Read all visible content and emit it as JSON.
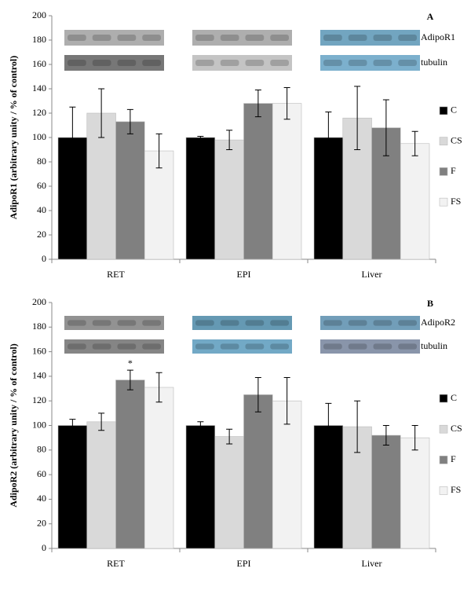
{
  "chart_data": [
    {
      "type": "bar",
      "panel_label": "A",
      "y_label": "AdipoR1 (arbitrary unity / % of control)",
      "blot_labels": [
        "AdipoR1",
        "tubulin"
      ],
      "categories": [
        "RET",
        "EPI",
        "Liver"
      ],
      "series": [
        {
          "name": "C",
          "color": "#000000",
          "values": [
            100,
            100,
            100
          ],
          "errors": [
            25,
            1,
            21
          ]
        },
        {
          "name": "CS",
          "color": "#d9d9d9",
          "values": [
            120,
            98,
            116
          ],
          "errors": [
            20,
            8,
            26
          ]
        },
        {
          "name": "F",
          "color": "#808080",
          "values": [
            113,
            128,
            108
          ],
          "errors": [
            10,
            11,
            23
          ]
        },
        {
          "name": "FS",
          "color": "#f2f2f2",
          "values": [
            89,
            128,
            95
          ],
          "errors": [
            14,
            13,
            10
          ]
        }
      ],
      "ylim": [
        0,
        200
      ],
      "yticks": [
        0,
        20,
        40,
        60,
        80,
        100,
        120,
        140,
        160,
        180,
        200
      ]
    },
    {
      "type": "bar",
      "panel_label": "B",
      "y_label": "AdipoR2 (arbitrary unity / % of control)",
      "blot_labels": [
        "AdipoR2",
        "tubulin"
      ],
      "categories": [
        "RET",
        "EPI",
        "Liver"
      ],
      "series": [
        {
          "name": "C",
          "color": "#000000",
          "values": [
            100,
            100,
            100
          ],
          "errors": [
            5,
            3,
            18
          ]
        },
        {
          "name": "CS",
          "color": "#d9d9d9",
          "values": [
            103,
            91,
            99
          ],
          "errors": [
            7,
            6,
            21
          ]
        },
        {
          "name": "F",
          "color": "#808080",
          "values": [
            137,
            125,
            92
          ],
          "errors": [
            8,
            14,
            8
          ]
        },
        {
          "name": "FS",
          "color": "#f2f2f2",
          "values": [
            131,
            120,
            90
          ],
          "errors": [
            12,
            19,
            10
          ]
        }
      ],
      "annotations": [
        {
          "text": "*",
          "category": 0,
          "series": 2
        }
      ],
      "ylim": [
        0,
        200
      ],
      "yticks": [
        0,
        20,
        40,
        60,
        80,
        100,
        120,
        140,
        160,
        180,
        200
      ]
    }
  ]
}
